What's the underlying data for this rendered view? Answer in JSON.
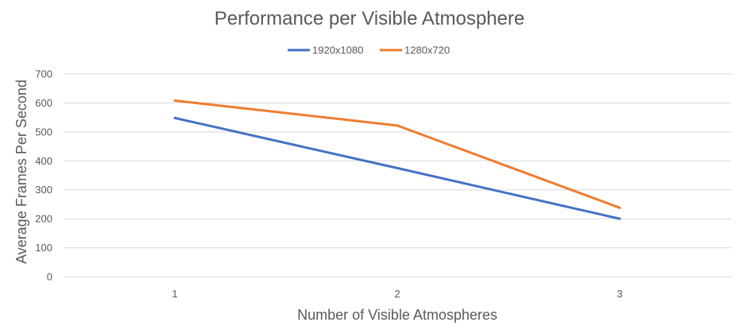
{
  "chart_data": {
    "type": "line",
    "title": "Performance per Visible Atmosphere",
    "xlabel": "Number of Visible Atmospheres",
    "ylabel": "Average Frames Per Second",
    "categories": [
      "1",
      "2",
      "3"
    ],
    "ylim": [
      0,
      700
    ],
    "yticks": [
      0,
      100,
      200,
      300,
      400,
      500,
      600,
      700
    ],
    "grid": true,
    "legend_position": "top",
    "series": [
      {
        "name": "1920x1080",
        "color": "#4472c4",
        "values": [
          548,
          375,
          200
        ]
      },
      {
        "name": "1280x720",
        "color": "#ed7d31",
        "values": [
          608,
          522,
          238
        ]
      }
    ]
  }
}
